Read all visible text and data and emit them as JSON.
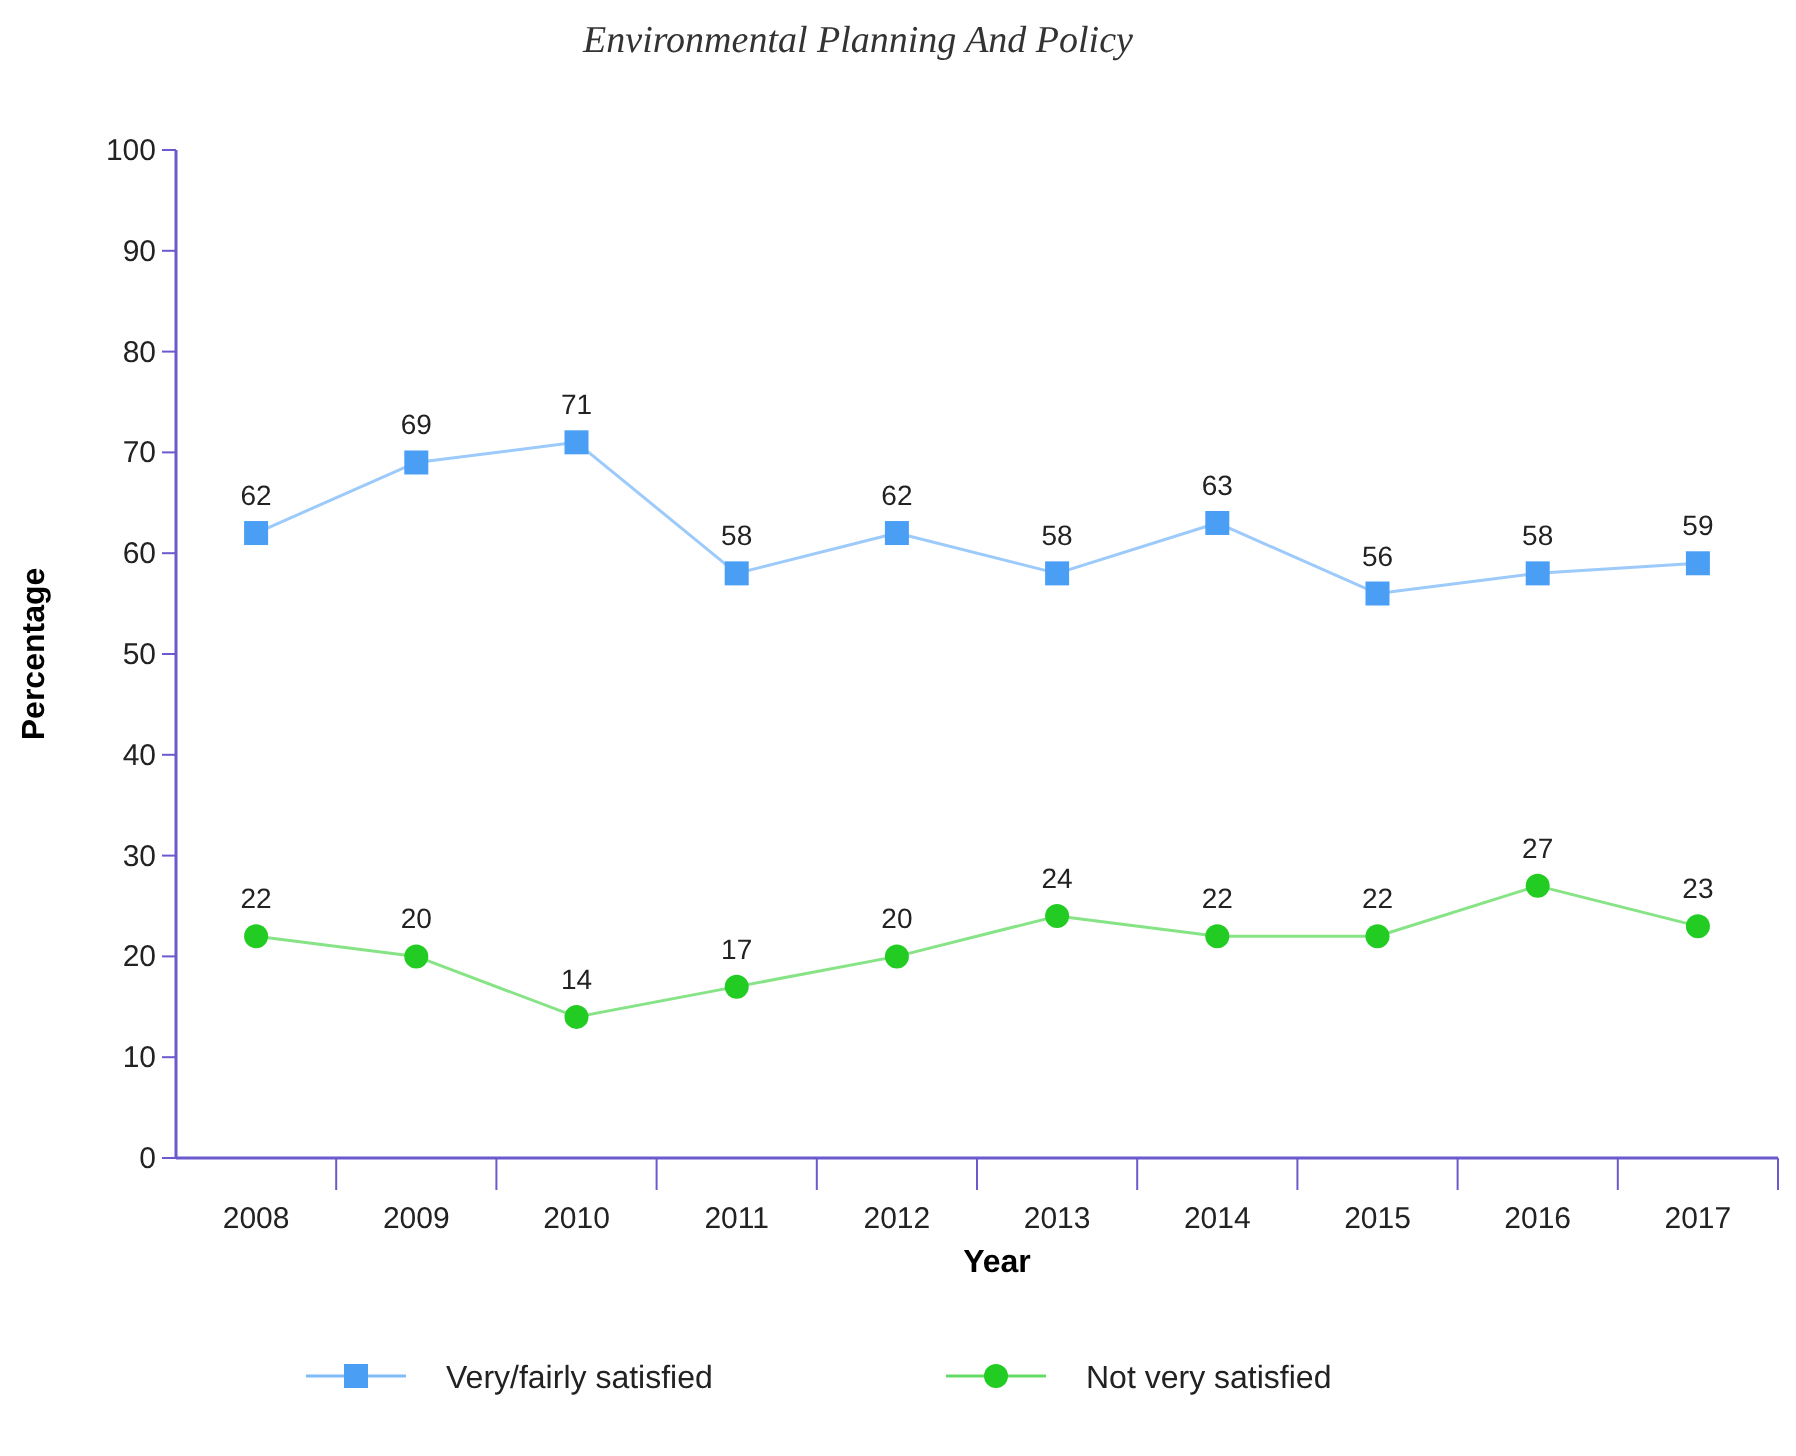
{
  "chart_data": {
    "type": "line",
    "title": "Environmental Planning And Policy",
    "xlabel": "Year",
    "ylabel": "Percentage",
    "categories": [
      "2008",
      "2009",
      "2010",
      "2011",
      "2012",
      "2013",
      "2014",
      "2015",
      "2016",
      "2017"
    ],
    "series": [
      {
        "name": "Very/fairly satisfied",
        "color": "#4a9ff5",
        "marker": "square",
        "values": [
          62,
          69,
          71,
          58,
          62,
          58,
          63,
          56,
          58,
          59
        ]
      },
      {
        "name": "Not very satisfied",
        "color": "#22cc22",
        "marker": "circle",
        "values": [
          22,
          20,
          14,
          17,
          20,
          24,
          22,
          22,
          27,
          23
        ]
      }
    ],
    "ylim": [
      0,
      100
    ],
    "yticks": [
      0,
      10,
      20,
      30,
      40,
      50,
      60,
      70,
      80,
      90,
      100
    ],
    "grid": false,
    "legend": "bottom",
    "data_labels": true,
    "line_style": "solid"
  }
}
